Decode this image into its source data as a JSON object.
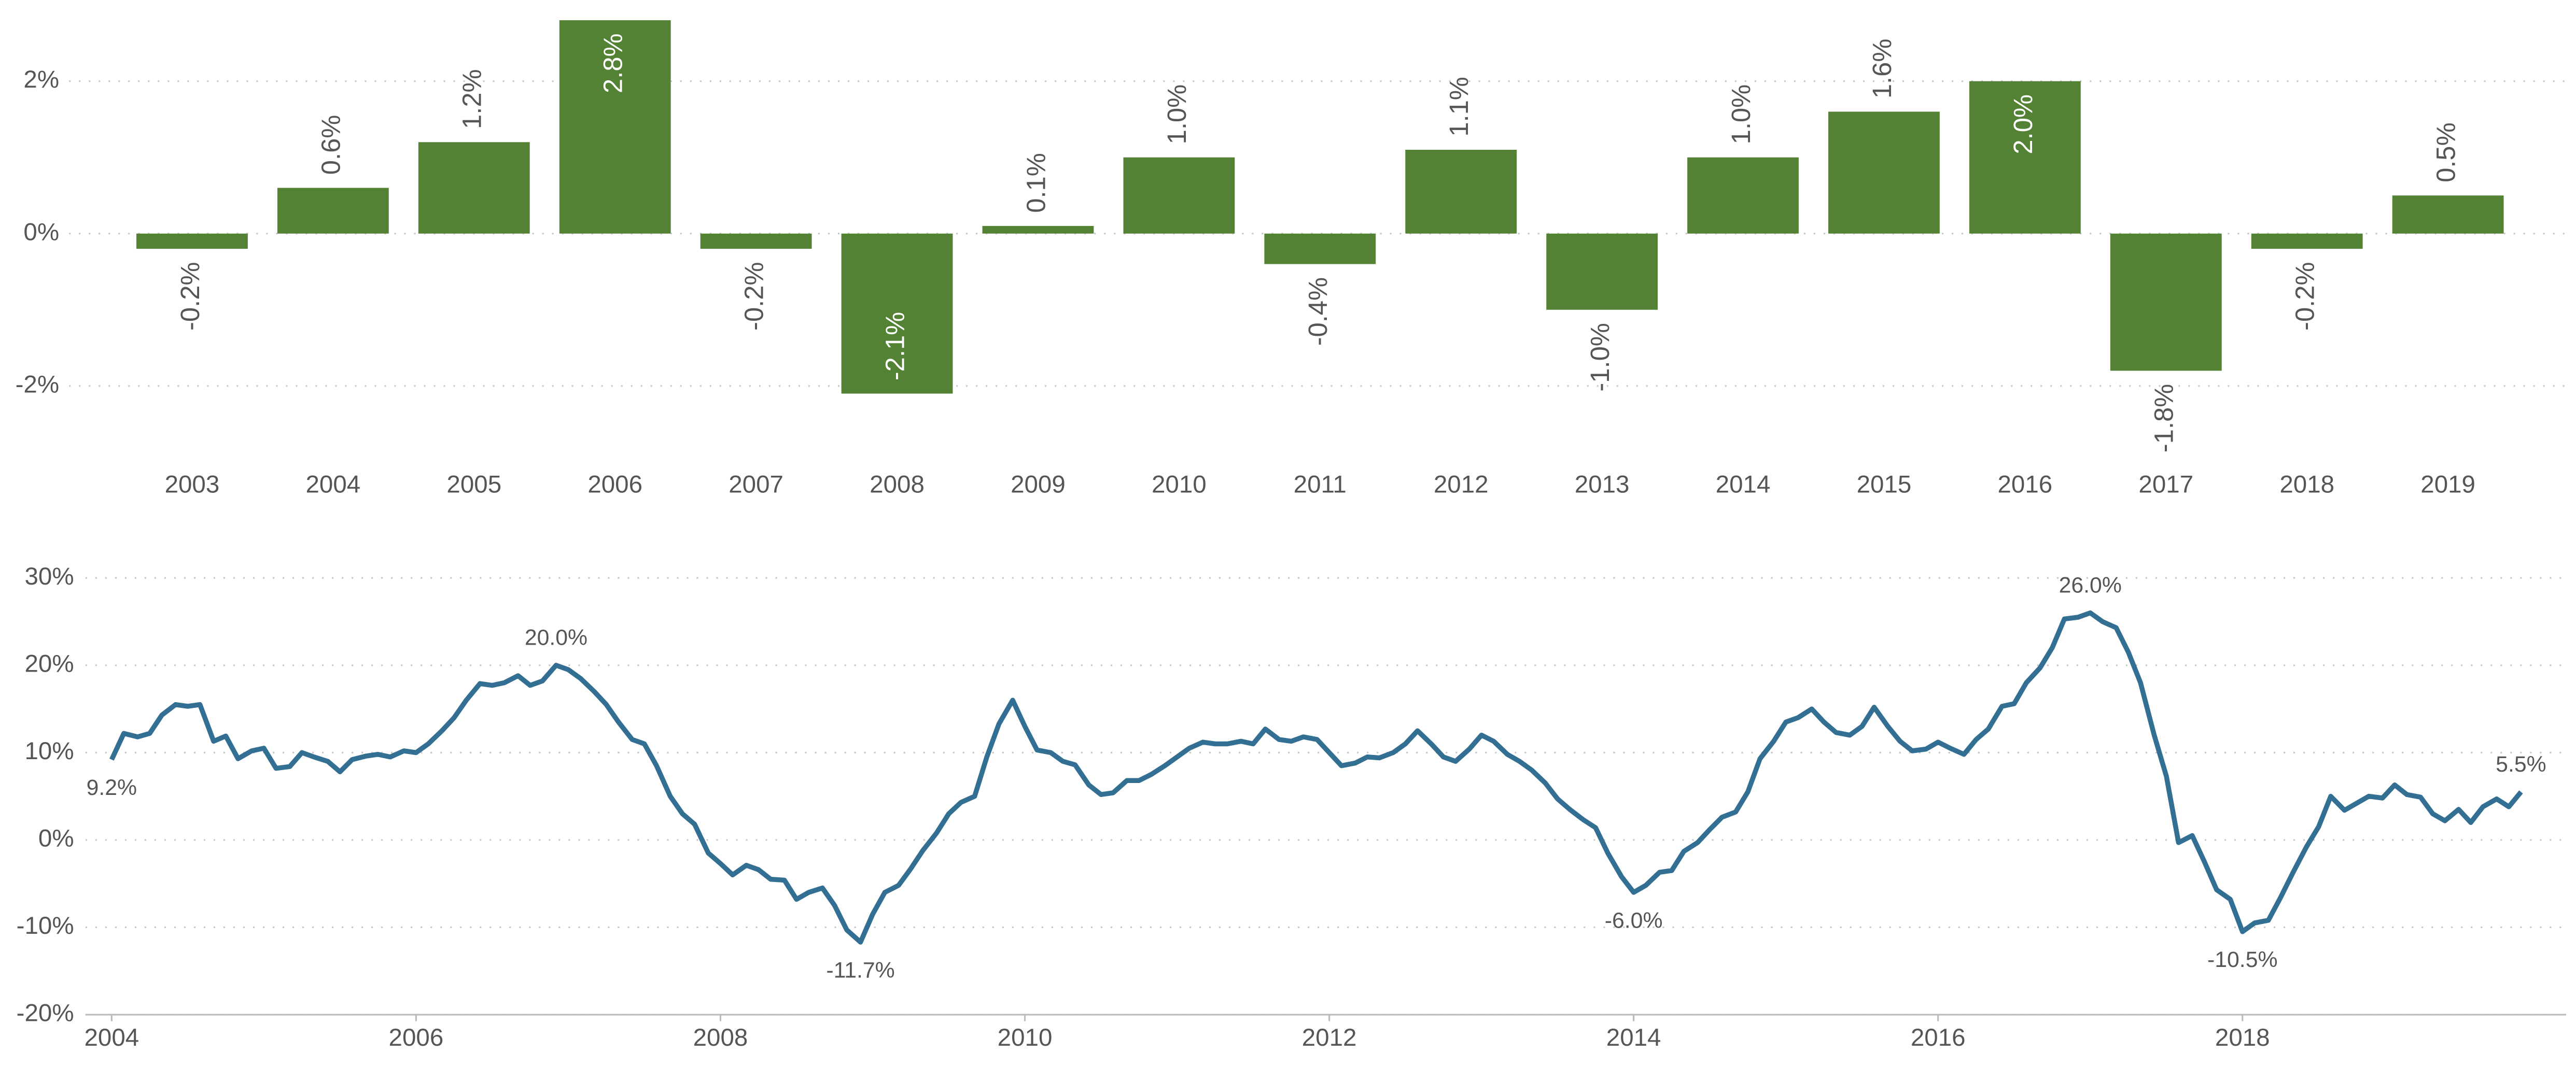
{
  "chart_data": [
    {
      "type": "bar",
      "categories": [
        "2003",
        "2004",
        "2005",
        "2006",
        "2007",
        "2008",
        "2009",
        "2010",
        "2011",
        "2012",
        "2013",
        "2014",
        "2015",
        "2016",
        "2017",
        "2018",
        "2019"
      ],
      "values": [
        -0.2,
        0.6,
        1.2,
        2.8,
        -0.2,
        -2.1,
        0.1,
        1.0,
        -0.4,
        1.1,
        -1.0,
        1.0,
        1.6,
        2.0,
        -1.8,
        -0.2,
        0.5
      ],
      "value_labels": [
        "-0.2%",
        "0.6%",
        "1.2%",
        "2.8%",
        "-0.2%",
        "-2.1%",
        "0.1%",
        "1.0%",
        "-0.4%",
        "1.1%",
        "-1.0%",
        "1.0%",
        "1.6%",
        "2.0%",
        "-1.8%",
        "-0.2%",
        "0.5%"
      ],
      "color": "#548235",
      "ylim": [
        -3,
        2.85
      ],
      "yticks": [
        {
          "value": -2,
          "label": "-2%"
        },
        {
          "value": 0,
          "label": "0%"
        },
        {
          "value": 2,
          "label": "2%"
        }
      ],
      "grid": true
    },
    {
      "type": "line",
      "x": [
        2004,
        2004.08,
        2004.17,
        2004.25,
        2004.33,
        2004.42,
        2004.5,
        2004.58,
        2004.67,
        2004.75,
        2004.83,
        2004.92,
        2005,
        2005.08,
        2005.17,
        2005.25,
        2005.33,
        2005.42,
        2005.5,
        2005.58,
        2005.67,
        2005.75,
        2005.83,
        2005.92,
        2006,
        2006.08,
        2006.17,
        2006.25,
        2006.33,
        2006.42,
        2006.5,
        2006.58,
        2006.67,
        2006.75,
        2006.83,
        2006.92,
        2007,
        2007.08,
        2007.17,
        2007.25,
        2007.33,
        2007.42,
        2007.5,
        2007.58,
        2007.67,
        2007.75,
        2007.83,
        2007.92,
        2008,
        2008.08,
        2008.17,
        2008.25,
        2008.33,
        2008.42,
        2008.5,
        2008.58,
        2008.67,
        2008.75,
        2008.83,
        2008.92,
        2009,
        2009.08,
        2009.17,
        2009.25,
        2009.33,
        2009.42,
        2009.5,
        2009.58,
        2009.67,
        2009.75,
        2009.83,
        2009.92,
        2010,
        2010.08,
        2010.17,
        2010.25,
        2010.33,
        2010.42,
        2010.5,
        2010.58,
        2010.67,
        2010.75,
        2010.83,
        2010.92,
        2011,
        2011.08,
        2011.17,
        2011.25,
        2011.33,
        2011.42,
        2011.5,
        2011.58,
        2011.67,
        2011.75,
        2011.83,
        2011.92,
        2012,
        2012.08,
        2012.17,
        2012.25,
        2012.33,
        2012.42,
        2012.5,
        2012.58,
        2012.67,
        2012.75,
        2012.83,
        2012.92,
        2013,
        2013.08,
        2013.17,
        2013.25,
        2013.33,
        2013.42,
        2013.5,
        2013.58,
        2013.67,
        2013.75,
        2013.83,
        2013.92,
        2014,
        2014.08,
        2014.17,
        2014.25,
        2014.33,
        2014.42,
        2014.5,
        2014.58,
        2014.67,
        2014.75,
        2014.83,
        2014.92,
        2015,
        2015.08,
        2015.17,
        2015.25,
        2015.33,
        2015.42,
        2015.5,
        2015.58,
        2015.67,
        2015.75,
        2015.83,
        2015.92,
        2016,
        2016.08,
        2016.17,
        2016.25,
        2016.33,
        2016.42,
        2016.5,
        2016.58,
        2016.67,
        2016.75,
        2016.83,
        2016.92,
        2017,
        2017.08,
        2017.17,
        2017.25,
        2017.33,
        2017.42,
        2017.5,
        2017.58,
        2017.67,
        2017.75,
        2017.83,
        2017.92,
        2018,
        2018.08,
        2018.17,
        2018.25,
        2018.33,
        2018.42,
        2018.5,
        2018.58,
        2018.67,
        2018.75,
        2018.83,
        2018.92,
        2019,
        2019.08,
        2019.17,
        2019.25,
        2019.33,
        2019.42,
        2019.5,
        2019.58,
        2019.67,
        2019.75,
        2019.83
      ],
      "values": [
        9.2,
        12.2,
        11.8,
        12.2,
        14.3,
        15.5,
        15.3,
        15.5,
        11.3,
        11.9,
        9.3,
        10.2,
        10.5,
        8.2,
        8.4,
        10.0,
        9.5,
        9.0,
        7.8,
        9.2,
        9.6,
        9.8,
        9.5,
        10.2,
        10.0,
        11.0,
        12.5,
        14.0,
        16.0,
        17.9,
        17.7,
        18.0,
        18.8,
        17.7,
        18.2,
        20.0,
        19.5,
        18.5,
        17.0,
        15.5,
        13.5,
        11.5,
        11.0,
        8.5,
        5.0,
        3.0,
        1.8,
        -1.5,
        -2.7,
        -4.0,
        -2.9,
        -3.4,
        -4.5,
        -4.6,
        -6.8,
        -6.0,
        -5.5,
        -7.5,
        -10.3,
        -11.7,
        -8.5,
        -6.0,
        -5.2,
        -3.3,
        -1.2,
        0.8,
        3.0,
        4.3,
        5.0,
        9.5,
        13.3,
        16.0,
        13.0,
        10.3,
        10.0,
        9.0,
        8.6,
        6.3,
        5.2,
        5.4,
        6.8,
        6.8,
        7.5,
        8.5,
        9.5,
        10.5,
        11.2,
        11.0,
        11.0,
        11.3,
        11.0,
        12.7,
        11.5,
        11.3,
        11.8,
        11.5,
        10.0,
        8.5,
        8.8,
        9.5,
        9.4,
        10.0,
        11.0,
        12.5,
        11.0,
        9.5,
        9.0,
        10.4,
        12.0,
        11.3,
        9.8,
        9.0,
        8.0,
        6.5,
        4.7,
        3.5,
        2.3,
        1.4,
        -1.5,
        -4.2,
        -6.0,
        -5.2,
        -3.7,
        -3.5,
        -1.3,
        -0.3,
        1.2,
        2.6,
        3.2,
        5.5,
        9.3,
        11.3,
        13.5,
        14.0,
        15.0,
        13.5,
        12.3,
        12.0,
        13.0,
        15.2,
        13.0,
        11.3,
        10.2,
        10.4,
        11.2,
        10.5,
        9.8,
        11.5,
        12.7,
        15.3,
        15.6,
        18.0,
        19.7,
        22.0,
        25.3,
        25.5,
        26.0,
        25.0,
        24.3,
        21.5,
        18.0,
        12.0,
        7.3,
        -0.3,
        0.5,
        -2.5,
        -5.7,
        -6.8,
        -10.5,
        -9.5,
        -9.2,
        -6.6,
        -3.8,
        -0.8,
        1.5,
        5.0,
        3.4,
        4.2,
        5.0,
        4.8,
        6.3,
        5.2,
        4.9,
        3.0,
        2.2,
        3.5,
        2.0,
        3.8,
        4.7,
        3.8,
        5.5
      ],
      "color": "#326f93",
      "annotations": [
        {
          "x": 2004,
          "y": 9.2,
          "label": "9.2%"
        },
        {
          "x": 2006.92,
          "y": 20.0,
          "label": "20.0%"
        },
        {
          "x": 2008.92,
          "y": -11.7,
          "label": "-11.7%"
        },
        {
          "x": 2014,
          "y": -6.0,
          "label": "-6.0%"
        },
        {
          "x": 2017,
          "y": 26.0,
          "label": "26.0%"
        },
        {
          "x": 2018,
          "y": -10.5,
          "label": "-10.5%"
        },
        {
          "x": 2019.83,
          "y": 5.5,
          "label": "5.5%"
        }
      ],
      "xlim": [
        2003.75,
        2019.97
      ],
      "xticks": [
        2004,
        2006,
        2008,
        2010,
        2012,
        2014,
        2016,
        2018
      ],
      "ylim": [
        -20,
        30
      ],
      "yticks": [
        {
          "value": -20,
          "label": "-20%"
        },
        {
          "value": -10,
          "label": "-10%"
        },
        {
          "value": 0,
          "label": "0%"
        },
        {
          "value": 10,
          "label": "10%"
        },
        {
          "value": 20,
          "label": "20%"
        },
        {
          "value": 30,
          "label": "30%"
        }
      ],
      "grid": true
    }
  ]
}
